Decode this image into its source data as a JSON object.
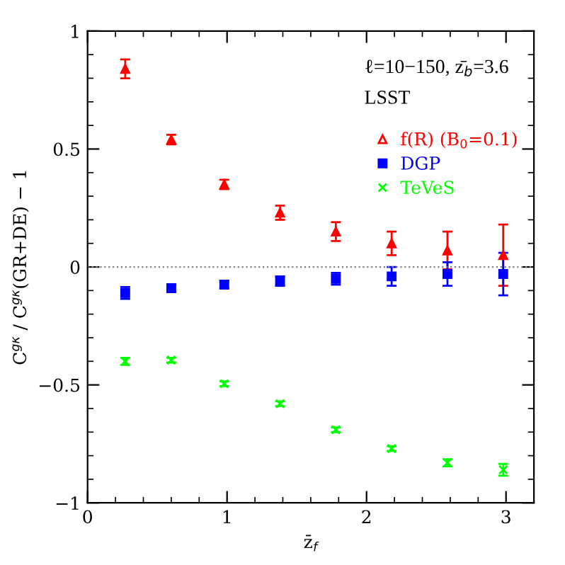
{
  "chart_data": {
    "type": "scatter",
    "xlabel": "z̄$_{f}$",
    "ylabel": "C$^{gκ}$ / C$^{gκ}$(GR+DE) − 1",
    "x": [
      0.27,
      0.6,
      0.98,
      1.38,
      1.78,
      2.18,
      2.58,
      2.98
    ],
    "series": [
      {
        "name": "f(R) (B$_{0}$=0.1)",
        "color": "#ff0000",
        "marker": "triangle",
        "values": [
          0.84,
          0.54,
          0.35,
          0.23,
          0.15,
          0.1,
          0.07,
          0.05
        ],
        "errors": [
          0.04,
          0.02,
          0.02,
          0.03,
          0.04,
          0.05,
          0.08,
          0.13
        ]
      },
      {
        "name": "DGP",
        "color": "#0000ff",
        "marker": "square",
        "values": [
          -0.11,
          -0.09,
          -0.075,
          -0.06,
          -0.05,
          -0.04,
          -0.03,
          -0.03
        ],
        "errors": [
          0.025,
          0.015,
          0.015,
          0.02,
          0.025,
          0.04,
          0.05,
          0.09
        ]
      },
      {
        "name": "TeVeS",
        "color": "#00ff00",
        "marker": "cross",
        "values": [
          -0.4,
          -0.395,
          -0.495,
          -0.58,
          -0.69,
          -0.77,
          -0.83,
          -0.86
        ],
        "errors": [
          0.015,
          0.01,
          0.01,
          0.01,
          0.01,
          0.01,
          0.015,
          0.025
        ]
      }
    ],
    "xlim": [
      0,
      3.2
    ],
    "xticks": [
      0,
      1,
      2,
      3
    ],
    "ylim": [
      -1,
      1
    ],
    "yticks": [
      -1,
      -0.5,
      0,
      0.5,
      1
    ],
    "ref_lines": [
      {
        "axis": "y",
        "value": 0,
        "color": "#808080",
        "line_style": "dotted"
      }
    ],
    "annotations": [
      "ℓ=10−150, z̄$_{b}$=3.6",
      "LSST"
    ],
    "legend": "top right",
    "grid": false
  }
}
